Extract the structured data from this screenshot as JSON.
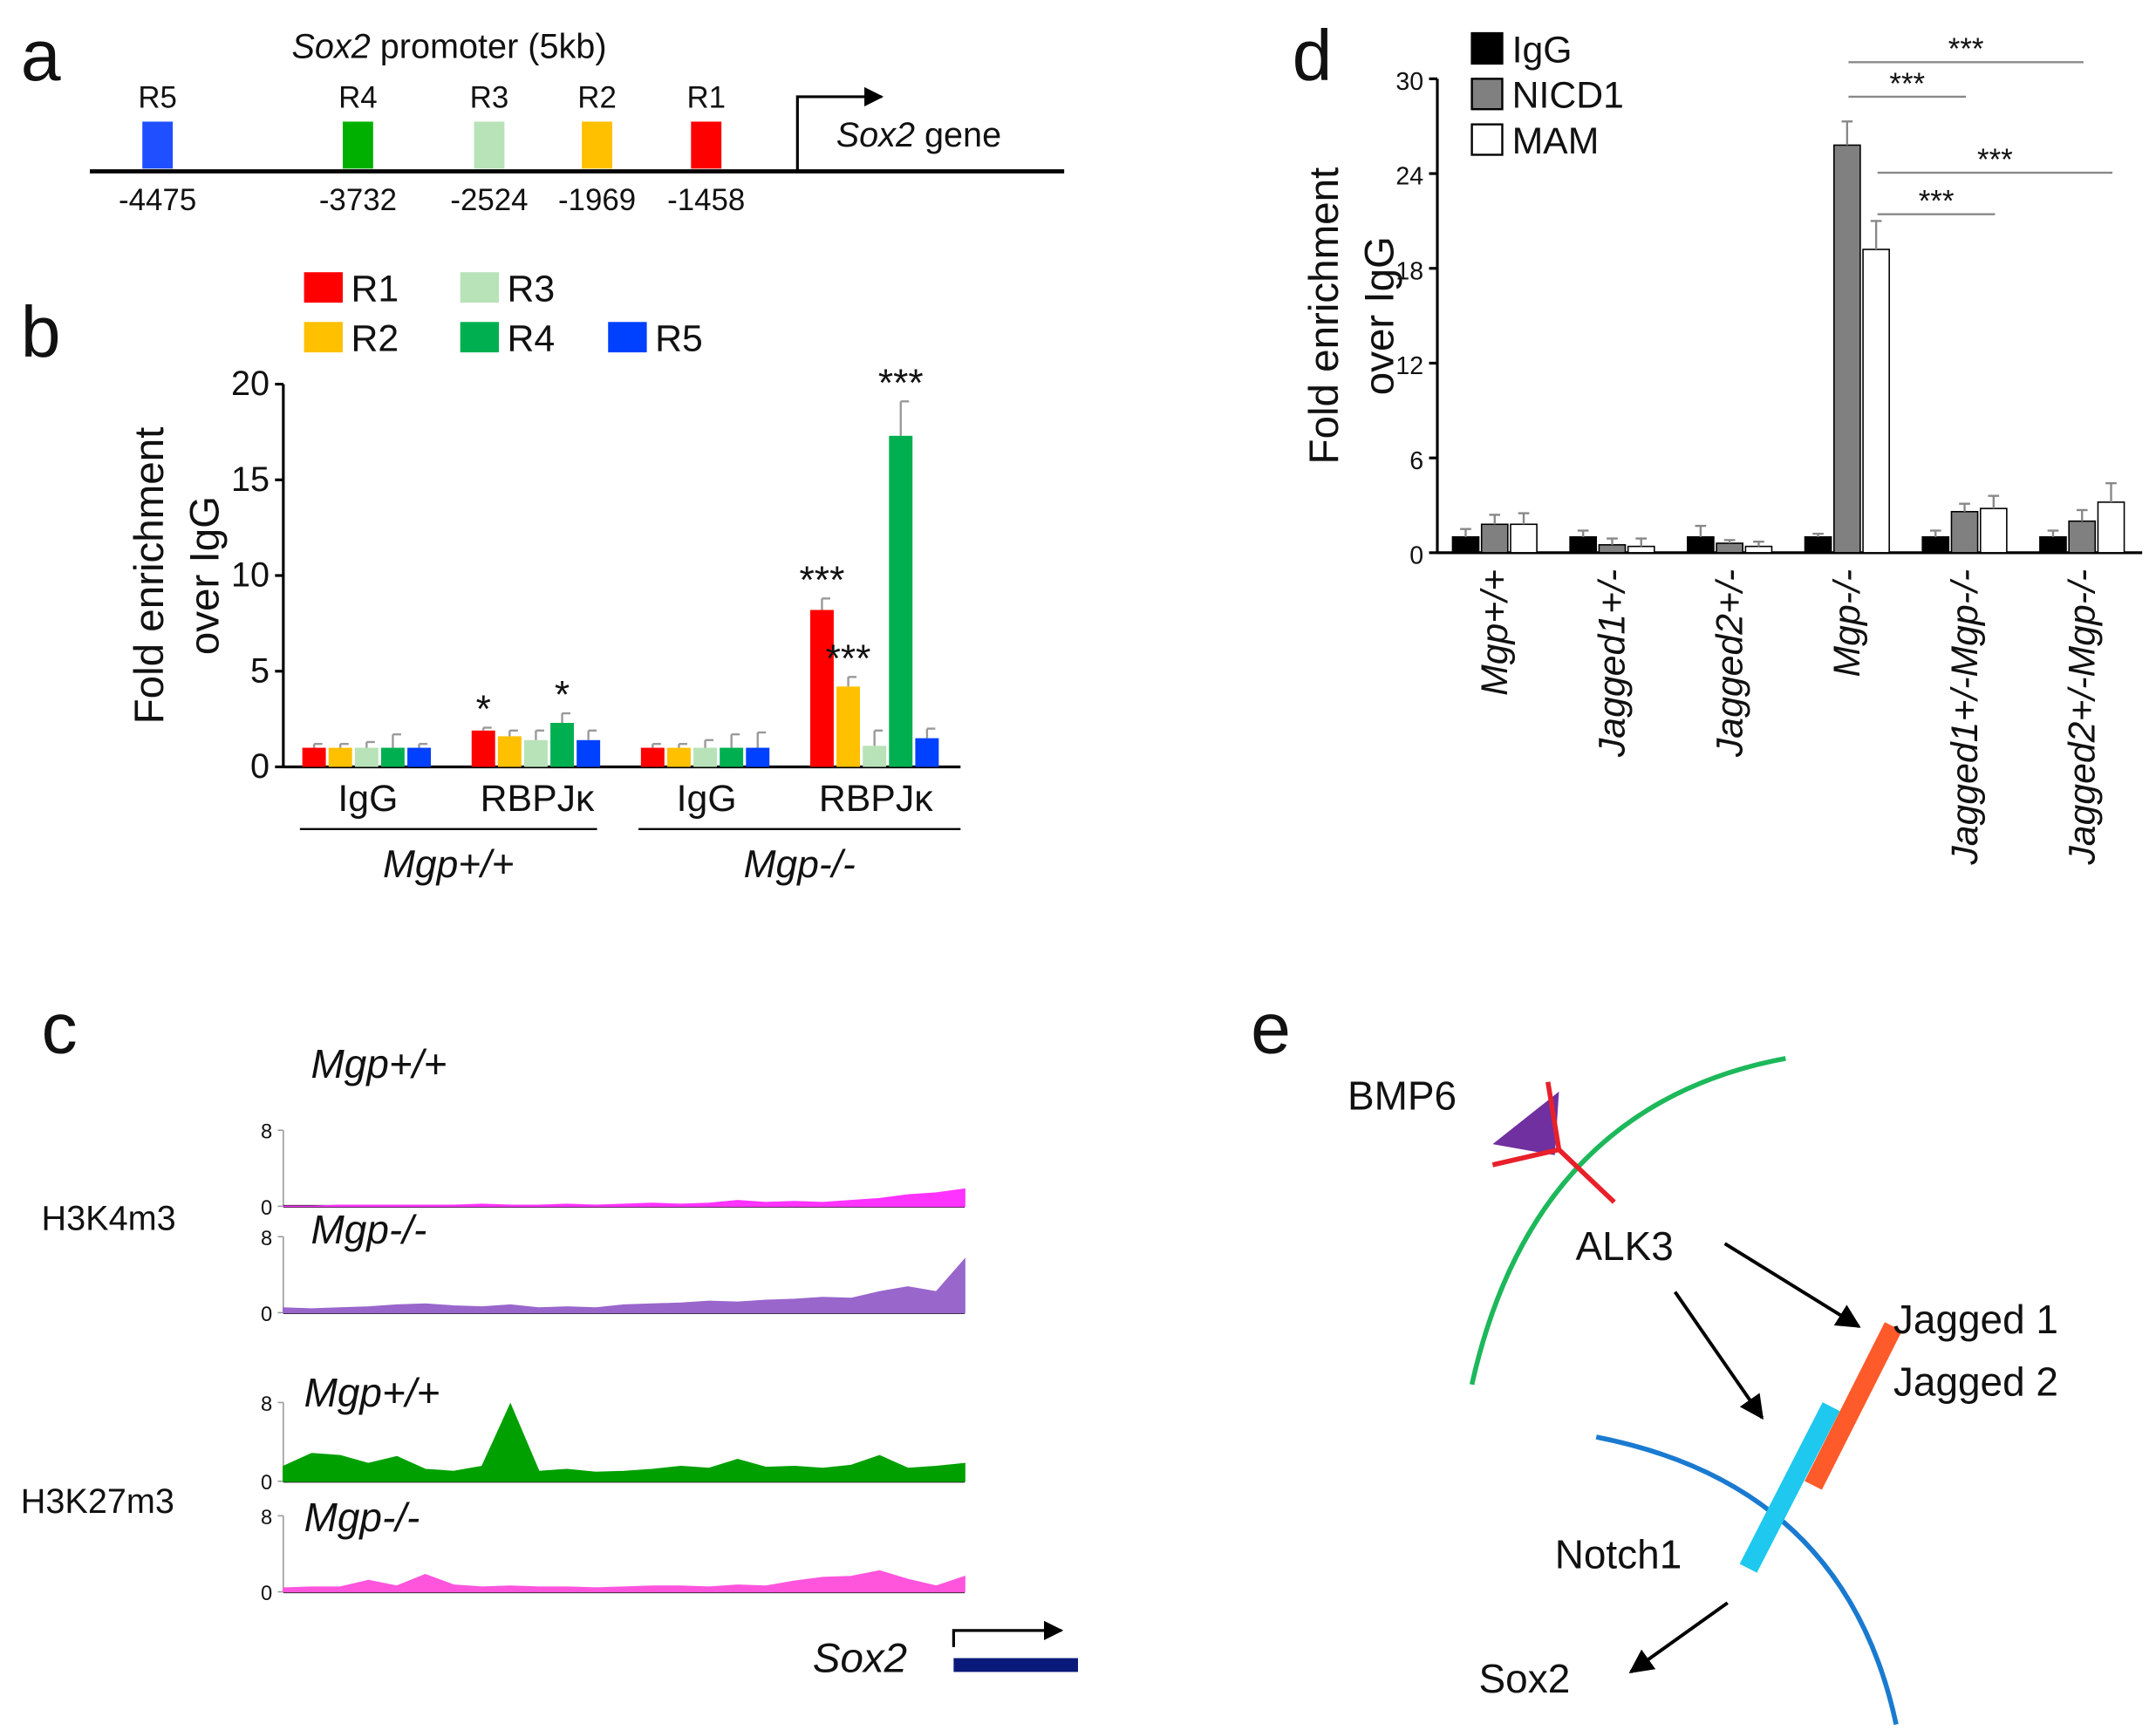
{
  "panels": [
    "a",
    "b",
    "c",
    "d",
    "e"
  ],
  "promoter": {
    "title_gene": "Sox2",
    "title_text": "promoter (5kb)",
    "regions": [
      {
        "label": "R5",
        "position": "-4475",
        "color": "#1f4fff"
      },
      {
        "label": "R4",
        "position": "-3732",
        "color": "#00b000"
      },
      {
        "label": "R3",
        "position": "-2524",
        "color": "#b8e2b8"
      },
      {
        "label": "R2",
        "position": "-1969",
        "color": "#ffc000"
      },
      {
        "label": "R1",
        "position": "-1458",
        "color": "#ff0000"
      }
    ],
    "gene_name": "Sox2",
    "gene_word": "gene"
  },
  "tracks": {
    "row_labels": [
      "H3K4m3",
      "H3K27m3"
    ],
    "gene_name": "Sox2"
  },
  "pathway": {
    "labels": [
      "BMP6",
      "ALK3",
      "Jagged 1",
      "Jagged 2",
      "Notch1",
      "Sox2"
    ]
  },
  "chart_data": [
    {
      "type": "bar",
      "ylabel": [
        "Fold enrichment",
        "over IgG"
      ],
      "categories": [
        "IgG",
        "RBPJκ",
        "IgG",
        "RBPJκ"
      ],
      "group_labels": [
        "Mgp+/+",
        "Mgp-/-"
      ],
      "series": [
        {
          "name": "R1",
          "color": "#ff0000",
          "values": [
            1,
            1.9,
            1,
            8.2
          ],
          "errors": [
            0.2,
            0.15,
            0.2,
            0.6
          ]
        },
        {
          "name": "R2",
          "color": "#ffc000",
          "values": [
            1,
            1.6,
            1,
            4.2
          ],
          "errors": [
            0.2,
            0.3,
            0.2,
            0.5
          ]
        },
        {
          "name": "R3",
          "color": "#b8e2b8",
          "values": [
            1,
            1.4,
            1,
            1.1
          ],
          "errors": [
            0.3,
            0.5,
            0.4,
            0.8
          ]
        },
        {
          "name": "R4",
          "color": "#00b050",
          "values": [
            1,
            2.3,
            1,
            17.3
          ],
          "errors": [
            0.7,
            0.5,
            0.7,
            1.8
          ]
        },
        {
          "name": "R5",
          "color": "#0040ff",
          "values": [
            1,
            1.4,
            1,
            1.5
          ],
          "errors": [
            0.2,
            0.5,
            0.8,
            0.5
          ]
        }
      ],
      "annotations": [
        {
          "text": "*",
          "series": 0,
          "category": 1
        },
        {
          "text": "*",
          "series": 3,
          "category": 1
        },
        {
          "text": "***",
          "series": 0,
          "category": 3
        },
        {
          "text": "***",
          "series": 1,
          "category": 3
        },
        {
          "text": "***",
          "series": 3,
          "category": 3
        }
      ],
      "ylim": [
        0,
        20
      ],
      "yticks": [
        0,
        5,
        10,
        15,
        20
      ],
      "legend": "top"
    },
    {
      "type": "bar",
      "ylabel": [
        "Fold enrichment",
        "over IgG"
      ],
      "categories": [
        "Mgp+/+",
        "Jagged1+/-",
        "Jagged2+/-",
        "Mgp-/-",
        "Jagged1+/-Mgp-/-",
        "Jagged2+/-Mgp-/-"
      ],
      "series": [
        {
          "name": "IgG",
          "color": "#000000",
          "values": [
            1,
            1,
            1,
            1,
            1,
            1
          ],
          "errors": [
            0.5,
            0.4,
            0.7,
            0.2,
            0.4,
            0.4
          ]
        },
        {
          "name": "NICD1",
          "color": "#808080",
          "values": [
            1.8,
            0.5,
            0.6,
            25.8,
            2.6,
            2.0
          ],
          "errors": [
            0.6,
            0.4,
            0.2,
            1.5,
            0.5,
            0.7
          ]
        },
        {
          "name": "MAM",
          "color": "#ffffff",
          "values": [
            1.8,
            0.4,
            0.4,
            19.2,
            2.8,
            3.2
          ],
          "errors": [
            0.7,
            0.5,
            0.3,
            1.8,
            0.8,
            1.2
          ]
        }
      ],
      "comparisons": [
        {
          "text": "***",
          "series": 1,
          "from": 3,
          "to": 5
        },
        {
          "text": "***",
          "series": 1,
          "from": 3,
          "to": 4
        },
        {
          "text": "***",
          "series": 2,
          "from": 3,
          "to": 5
        },
        {
          "text": "***",
          "series": 2,
          "from": 3,
          "to": 4
        }
      ],
      "ylim": [
        0,
        30
      ],
      "yticks": [
        0,
        6,
        12,
        18,
        24,
        30
      ],
      "legend": "top-left"
    },
    {
      "type": "area",
      "title": "Mgp+/+",
      "color": "#ff33ff",
      "ylim": [
        0,
        8
      ],
      "yticks": [
        0,
        8
      ],
      "values": [
        0,
        0,
        0.1,
        0.1,
        0.1,
        0.1,
        0.1,
        0.2,
        0.1,
        0.1,
        0.2,
        0.1,
        0.2,
        0.3,
        0.2,
        0.3,
        0.6,
        0.4,
        0.5,
        0.4,
        0.6,
        0.8,
        1.2,
        1.4,
        1.8
      ]
    },
    {
      "type": "area",
      "title": "Mgp-/-",
      "color": "#9966cc",
      "ylim": [
        0,
        8
      ],
      "yticks": [
        0,
        8
      ],
      "values": [
        0.5,
        0.4,
        0.5,
        0.6,
        0.8,
        0.9,
        0.7,
        0.6,
        0.8,
        0.5,
        0.6,
        0.5,
        0.8,
        0.9,
        1.0,
        1.2,
        1.1,
        1.3,
        1.4,
        1.6,
        1.5,
        2.2,
        2.7,
        2.2,
        5.6
      ]
    },
    {
      "type": "area",
      "title": "Mgp+/+",
      "color": "#00a000",
      "ylim": [
        0,
        8
      ],
      "yticks": [
        0,
        8
      ],
      "values": [
        1.5,
        2.8,
        2.6,
        1.8,
        2.5,
        1.2,
        1.0,
        1.5,
        7.8,
        1.0,
        1.2,
        0.9,
        1.0,
        1.2,
        1.5,
        1.3,
        2.2,
        1.4,
        1.5,
        1.3,
        1.6,
        2.6,
        1.3,
        1.5,
        1.8
      ]
    },
    {
      "type": "area",
      "title": "Mgp-/-",
      "color": "#ff55dd",
      "ylim": [
        0,
        8
      ],
      "yticks": [
        0,
        8
      ],
      "values": [
        0.4,
        0.5,
        0.5,
        1.2,
        0.6,
        1.8,
        0.7,
        0.5,
        0.6,
        0.5,
        0.5,
        0.4,
        0.5,
        0.6,
        0.6,
        0.5,
        0.7,
        0.6,
        1.1,
        1.5,
        1.6,
        2.2,
        1.3,
        0.6,
        1.6
      ]
    }
  ]
}
